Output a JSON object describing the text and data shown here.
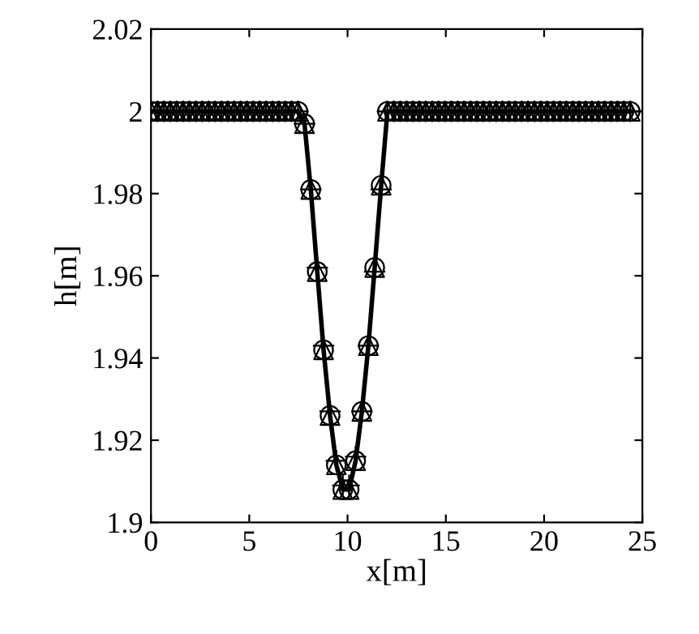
{
  "chart_data": {
    "type": "line",
    "xlabel": "x[m]",
    "ylabel": "h[m]",
    "x": [
      0,
      0.33,
      0.65,
      0.98,
      1.3,
      1.63,
      1.95,
      2.28,
      2.6,
      2.93,
      3.25,
      3.58,
      3.9,
      4.23,
      4.55,
      4.88,
      5.2,
      5.53,
      5.85,
      6.18,
      6.5,
      6.83,
      7.15,
      7.48,
      7.81,
      8.13,
      8.46,
      8.78,
      9.11,
      9.43,
      9.76,
      10.08,
      10.41,
      10.73,
      11.06,
      11.38,
      11.71,
      12.03,
      12.36,
      12.68,
      13.01,
      13.33,
      13.66,
      13.98,
      14.31,
      14.63,
      14.96,
      15.28,
      15.61,
      15.93,
      16.26,
      16.58,
      16.91,
      17.23,
      17.56,
      17.88,
      18.21,
      18.53,
      18.86,
      19.18,
      19.51,
      19.83,
      20.16,
      20.48,
      20.81,
      21.13,
      21.46,
      21.78,
      22.11,
      22.43,
      22.76,
      23.08,
      23.41,
      23.73,
      24.06,
      24.38
    ],
    "series": [
      {
        "color": "#000000",
        "marker": "none",
        "line_style": "solid",
        "values": [
          2,
          2,
          2,
          2,
          2,
          2,
          2,
          2,
          2,
          2,
          2,
          2,
          2,
          2,
          2,
          2,
          2,
          2,
          2,
          2,
          2,
          2,
          2,
          2,
          1.997,
          1.981,
          1.961,
          1.942,
          1.926,
          1.914,
          1.908,
          1.908,
          1.915,
          1.927,
          1.943,
          1.962,
          1.982,
          2,
          2,
          2,
          2,
          2,
          2,
          2,
          2,
          2,
          2,
          2,
          2,
          2,
          2,
          2,
          2,
          2,
          2,
          2,
          2,
          2,
          2,
          2,
          2,
          2,
          2,
          2,
          2,
          2,
          2,
          2,
          2,
          2,
          2,
          2,
          2,
          2,
          2,
          2
        ]
      },
      {
        "type": "scatter",
        "color": "#000000",
        "marker": "circle",
        "values": [
          2,
          2,
          2,
          2,
          2,
          2,
          2,
          2,
          2,
          2,
          2,
          2,
          2,
          2,
          2,
          2,
          2,
          2,
          2,
          2,
          2,
          2,
          2,
          2,
          1.997,
          1.981,
          1.961,
          1.942,
          1.926,
          1.914,
          1.908,
          1.908,
          1.915,
          1.927,
          1.943,
          1.962,
          1.982,
          2,
          2,
          2,
          2,
          2,
          2,
          2,
          2,
          2,
          2,
          2,
          2,
          2,
          2,
          2,
          2,
          2,
          2,
          2,
          2,
          2,
          2,
          2,
          2,
          2,
          2,
          2,
          2,
          2,
          2,
          2,
          2,
          2,
          2,
          2,
          2,
          2,
          2,
          2
        ]
      },
      {
        "type": "scatter",
        "color": "#000000",
        "marker": "triangle",
        "values": [
          2,
          2,
          2,
          2,
          2,
          2,
          2,
          2,
          2,
          2,
          2,
          2,
          2,
          2,
          2,
          2,
          2,
          2,
          2,
          2,
          2,
          2,
          2,
          2,
          1.997,
          1.981,
          1.961,
          1.942,
          1.926,
          1.914,
          1.908,
          1.908,
          1.915,
          1.927,
          1.943,
          1.962,
          1.982,
          2,
          2,
          2,
          2,
          2,
          2,
          2,
          2,
          2,
          2,
          2,
          2,
          2,
          2,
          2,
          2,
          2,
          2,
          2,
          2,
          2,
          2,
          2,
          2,
          2,
          2,
          2,
          2,
          2,
          2,
          2,
          2,
          2,
          2,
          2,
          2,
          2,
          2,
          2
        ]
      },
      {
        "type": "scatter",
        "color": "#000000",
        "marker": "cross",
        "values": [
          2,
          2,
          2,
          2,
          2,
          2,
          2,
          2,
          2,
          2,
          2,
          2,
          2,
          2,
          2,
          2,
          2,
          2,
          2,
          2,
          2,
          2,
          2,
          2,
          1.997,
          1.981,
          1.962,
          1.943,
          1.927,
          1.915,
          1.909,
          1.909,
          1.916,
          1.927,
          1.943,
          1.961,
          1.981,
          2,
          2,
          2,
          2,
          2,
          2,
          2,
          2,
          2,
          2,
          2,
          2,
          2,
          2,
          2,
          2,
          2,
          2,
          2,
          2,
          2,
          2,
          2,
          2,
          2,
          2,
          2,
          2,
          2,
          2,
          2,
          2,
          2,
          2,
          2,
          2,
          2,
          2,
          2
        ]
      }
    ],
    "xlim": [
      0,
      25
    ],
    "xticks": [
      0,
      5,
      10,
      15,
      20,
      25
    ],
    "ylim": [
      1.9,
      2.02
    ],
    "yticks": [
      1.9,
      1.92,
      1.94,
      1.96,
      1.98,
      2,
      2.02
    ],
    "grid": false
  }
}
